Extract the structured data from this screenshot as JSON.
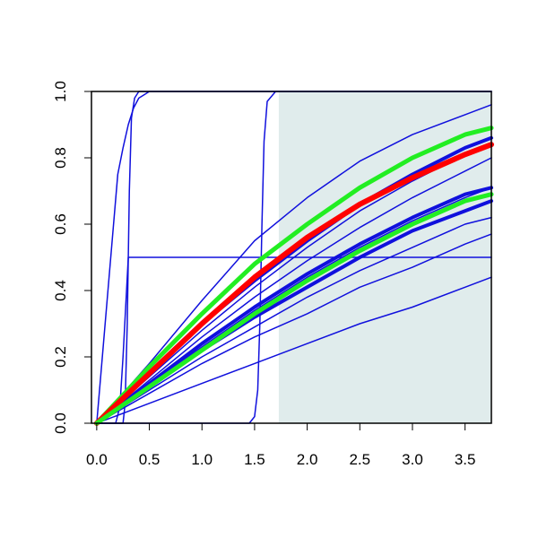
{
  "chart_data": {
    "type": "line",
    "title": "",
    "xlabel": "",
    "ylabel": "",
    "xlim": [
      -0.05,
      3.75
    ],
    "ylim": [
      0.0,
      1.0
    ],
    "grid": false,
    "legend": "none",
    "x_ticks": [
      "0.0",
      "0.5",
      "1.0",
      "1.5",
      "2.0",
      "2.5",
      "3.0",
      "3.5"
    ],
    "y_ticks": [
      "0.0",
      "0.2",
      "0.4",
      "0.6",
      "0.8",
      "1.0"
    ],
    "shaded_region": {
      "x": [
        1.73,
        3.75
      ],
      "y": [
        0.0,
        1.0
      ],
      "color": "#e0ecec"
    },
    "colors": {
      "curves": "#1010dd",
      "highlight_red": "#ff0000",
      "highlight_green": "#22ee22"
    },
    "series": [
      {
        "color": "#1010dd",
        "width": 1.5,
        "x": [
          0,
          0.2,
          0.25,
          0.3,
          0.35,
          0.4,
          0.45,
          0.5,
          3.75
        ],
        "y": [
          0,
          0.75,
          0.83,
          0.9,
          0.95,
          0.98,
          0.99,
          1.0,
          1.0
        ]
      },
      {
        "color": "#1010dd",
        "width": 1.5,
        "x": [
          0,
          0.25,
          0.27,
          0.29,
          0.31,
          0.33,
          0.36,
          0.4,
          3.75
        ],
        "y": [
          0,
          0.0,
          0.06,
          0.3,
          0.7,
          0.92,
          0.98,
          1.0,
          1.0
        ]
      },
      {
        "color": "#1010dd",
        "width": 1.5,
        "x": [
          0,
          0.18,
          0.22,
          0.25,
          0.3,
          3.75
        ],
        "y": [
          0,
          0.0,
          0.05,
          0.2,
          0.5,
          0.5
        ]
      },
      {
        "color": "#1010dd",
        "width": 1.5,
        "x": [
          0,
          1.45,
          1.5,
          1.53,
          1.55,
          1.57,
          1.59,
          1.62,
          1.7,
          3.75
        ],
        "y": [
          0,
          0.0,
          0.02,
          0.1,
          0.3,
          0.6,
          0.85,
          0.97,
          1.0,
          1.0
        ]
      },
      {
        "color": "#1010dd",
        "width": 1.5,
        "x": [
          0,
          0.5,
          1.0,
          1.5,
          2.0,
          2.5,
          3.0,
          3.5,
          3.75
        ],
        "y": [
          0,
          0.18,
          0.37,
          0.55,
          0.68,
          0.79,
          0.87,
          0.93,
          0.96
        ]
      },
      {
        "color": "#1010dd",
        "width": 1.5,
        "x": [
          0,
          0.5,
          1.0,
          1.5,
          2.0,
          2.5,
          3.0,
          3.5,
          3.75
        ],
        "y": [
          0,
          0.14,
          0.28,
          0.41,
          0.53,
          0.64,
          0.73,
          0.81,
          0.84
        ]
      },
      {
        "color": "#1010dd",
        "width": 1.5,
        "x": [
          0,
          0.5,
          1.0,
          1.5,
          2.0,
          2.5,
          3.0,
          3.5,
          3.75
        ],
        "y": [
          0,
          0.13,
          0.26,
          0.38,
          0.49,
          0.59,
          0.68,
          0.76,
          0.8
        ]
      },
      {
        "color": "#1010dd",
        "width": 1.5,
        "x": [
          0,
          0.5,
          1.0,
          1.5,
          2.0,
          2.5,
          3.0,
          3.5,
          3.75
        ],
        "y": [
          0,
          0.12,
          0.23,
          0.34,
          0.44,
          0.53,
          0.61,
          0.68,
          0.71
        ]
      },
      {
        "color": "#1010dd",
        "width": 1.5,
        "x": [
          0,
          0.5,
          1.0,
          1.5,
          2.0,
          2.5,
          3.0,
          3.5,
          3.75
        ],
        "y": [
          0,
          0.1,
          0.2,
          0.29,
          0.38,
          0.46,
          0.53,
          0.6,
          0.62
        ]
      },
      {
        "color": "#1010dd",
        "width": 1.5,
        "x": [
          0,
          0.5,
          1.0,
          1.5,
          2.0,
          2.5,
          3.0,
          3.5,
          3.75
        ],
        "y": [
          0,
          0.09,
          0.18,
          0.26,
          0.33,
          0.41,
          0.47,
          0.54,
          0.57
        ]
      },
      {
        "color": "#1010dd",
        "width": 1.5,
        "x": [
          0,
          0.5,
          1.0,
          1.5,
          2.0,
          2.5,
          3.0,
          3.5,
          3.75
        ],
        "y": [
          0,
          0.06,
          0.12,
          0.18,
          0.24,
          0.3,
          0.35,
          0.41,
          0.44
        ]
      },
      {
        "color": "#1010dd",
        "width": 4,
        "x": [
          0,
          0.5,
          1.0,
          1.5,
          2.0,
          2.5,
          3.0,
          3.5,
          3.75
        ],
        "y": [
          0,
          0.12,
          0.24,
          0.35,
          0.45,
          0.54,
          0.62,
          0.69,
          0.71
        ]
      },
      {
        "color": "#1010dd",
        "width": 4,
        "x": [
          0,
          0.5,
          1.0,
          1.5,
          2.0,
          2.5,
          3.0,
          3.5,
          3.75
        ],
        "y": [
          0,
          0.11,
          0.22,
          0.32,
          0.41,
          0.5,
          0.58,
          0.64,
          0.67
        ]
      },
      {
        "color": "#1010dd",
        "width": 4,
        "x": [
          0,
          0.5,
          1.0,
          1.5,
          2.0,
          2.5,
          3.0,
          3.5,
          3.75
        ],
        "y": [
          0,
          0.15,
          0.3,
          0.43,
          0.55,
          0.66,
          0.75,
          0.83,
          0.86
        ]
      },
      {
        "color": "#22ee22",
        "width": 5,
        "x": [
          0,
          0.5,
          1.0,
          1.5,
          2.0,
          2.5,
          3.0,
          3.5,
          3.75
        ],
        "y": [
          0,
          0.17,
          0.33,
          0.48,
          0.6,
          0.71,
          0.8,
          0.87,
          0.89
        ]
      },
      {
        "color": "#ff0000",
        "width": 6,
        "x": [
          0,
          0.5,
          1.0,
          1.5,
          2.0,
          2.5,
          3.0,
          3.5,
          3.75
        ],
        "y": [
          0,
          0.15,
          0.3,
          0.44,
          0.56,
          0.66,
          0.74,
          0.81,
          0.84
        ]
      },
      {
        "color": "#22ee22",
        "width": 5,
        "x": [
          0,
          0.5,
          1.0,
          1.5,
          2.0,
          2.5,
          3.0,
          3.5,
          3.75
        ],
        "y": [
          0,
          0.11,
          0.22,
          0.33,
          0.43,
          0.52,
          0.6,
          0.67,
          0.69
        ]
      }
    ]
  }
}
